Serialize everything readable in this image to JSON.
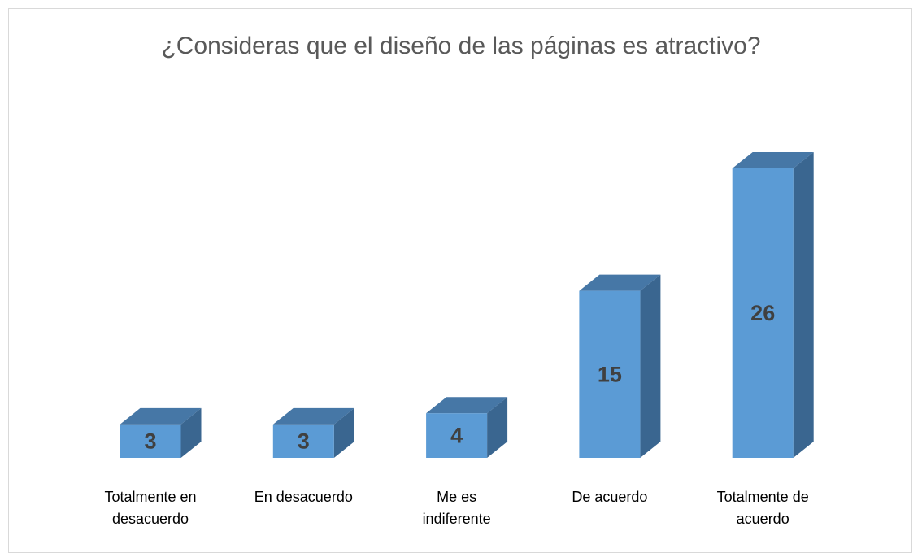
{
  "chart_data": {
    "type": "bar3d",
    "title": "¿Consideras que el diseño de las páginas es atractivo?",
    "categories": [
      "Totalmente en\ndesacuerdo",
      "En desacuerdo",
      "Me es\nindiferente",
      "De acuerdo",
      "Totalmente de\nacuerdo"
    ],
    "values": [
      3,
      3,
      4,
      15,
      26
    ],
    "color": "#5b9bd5"
  }
}
